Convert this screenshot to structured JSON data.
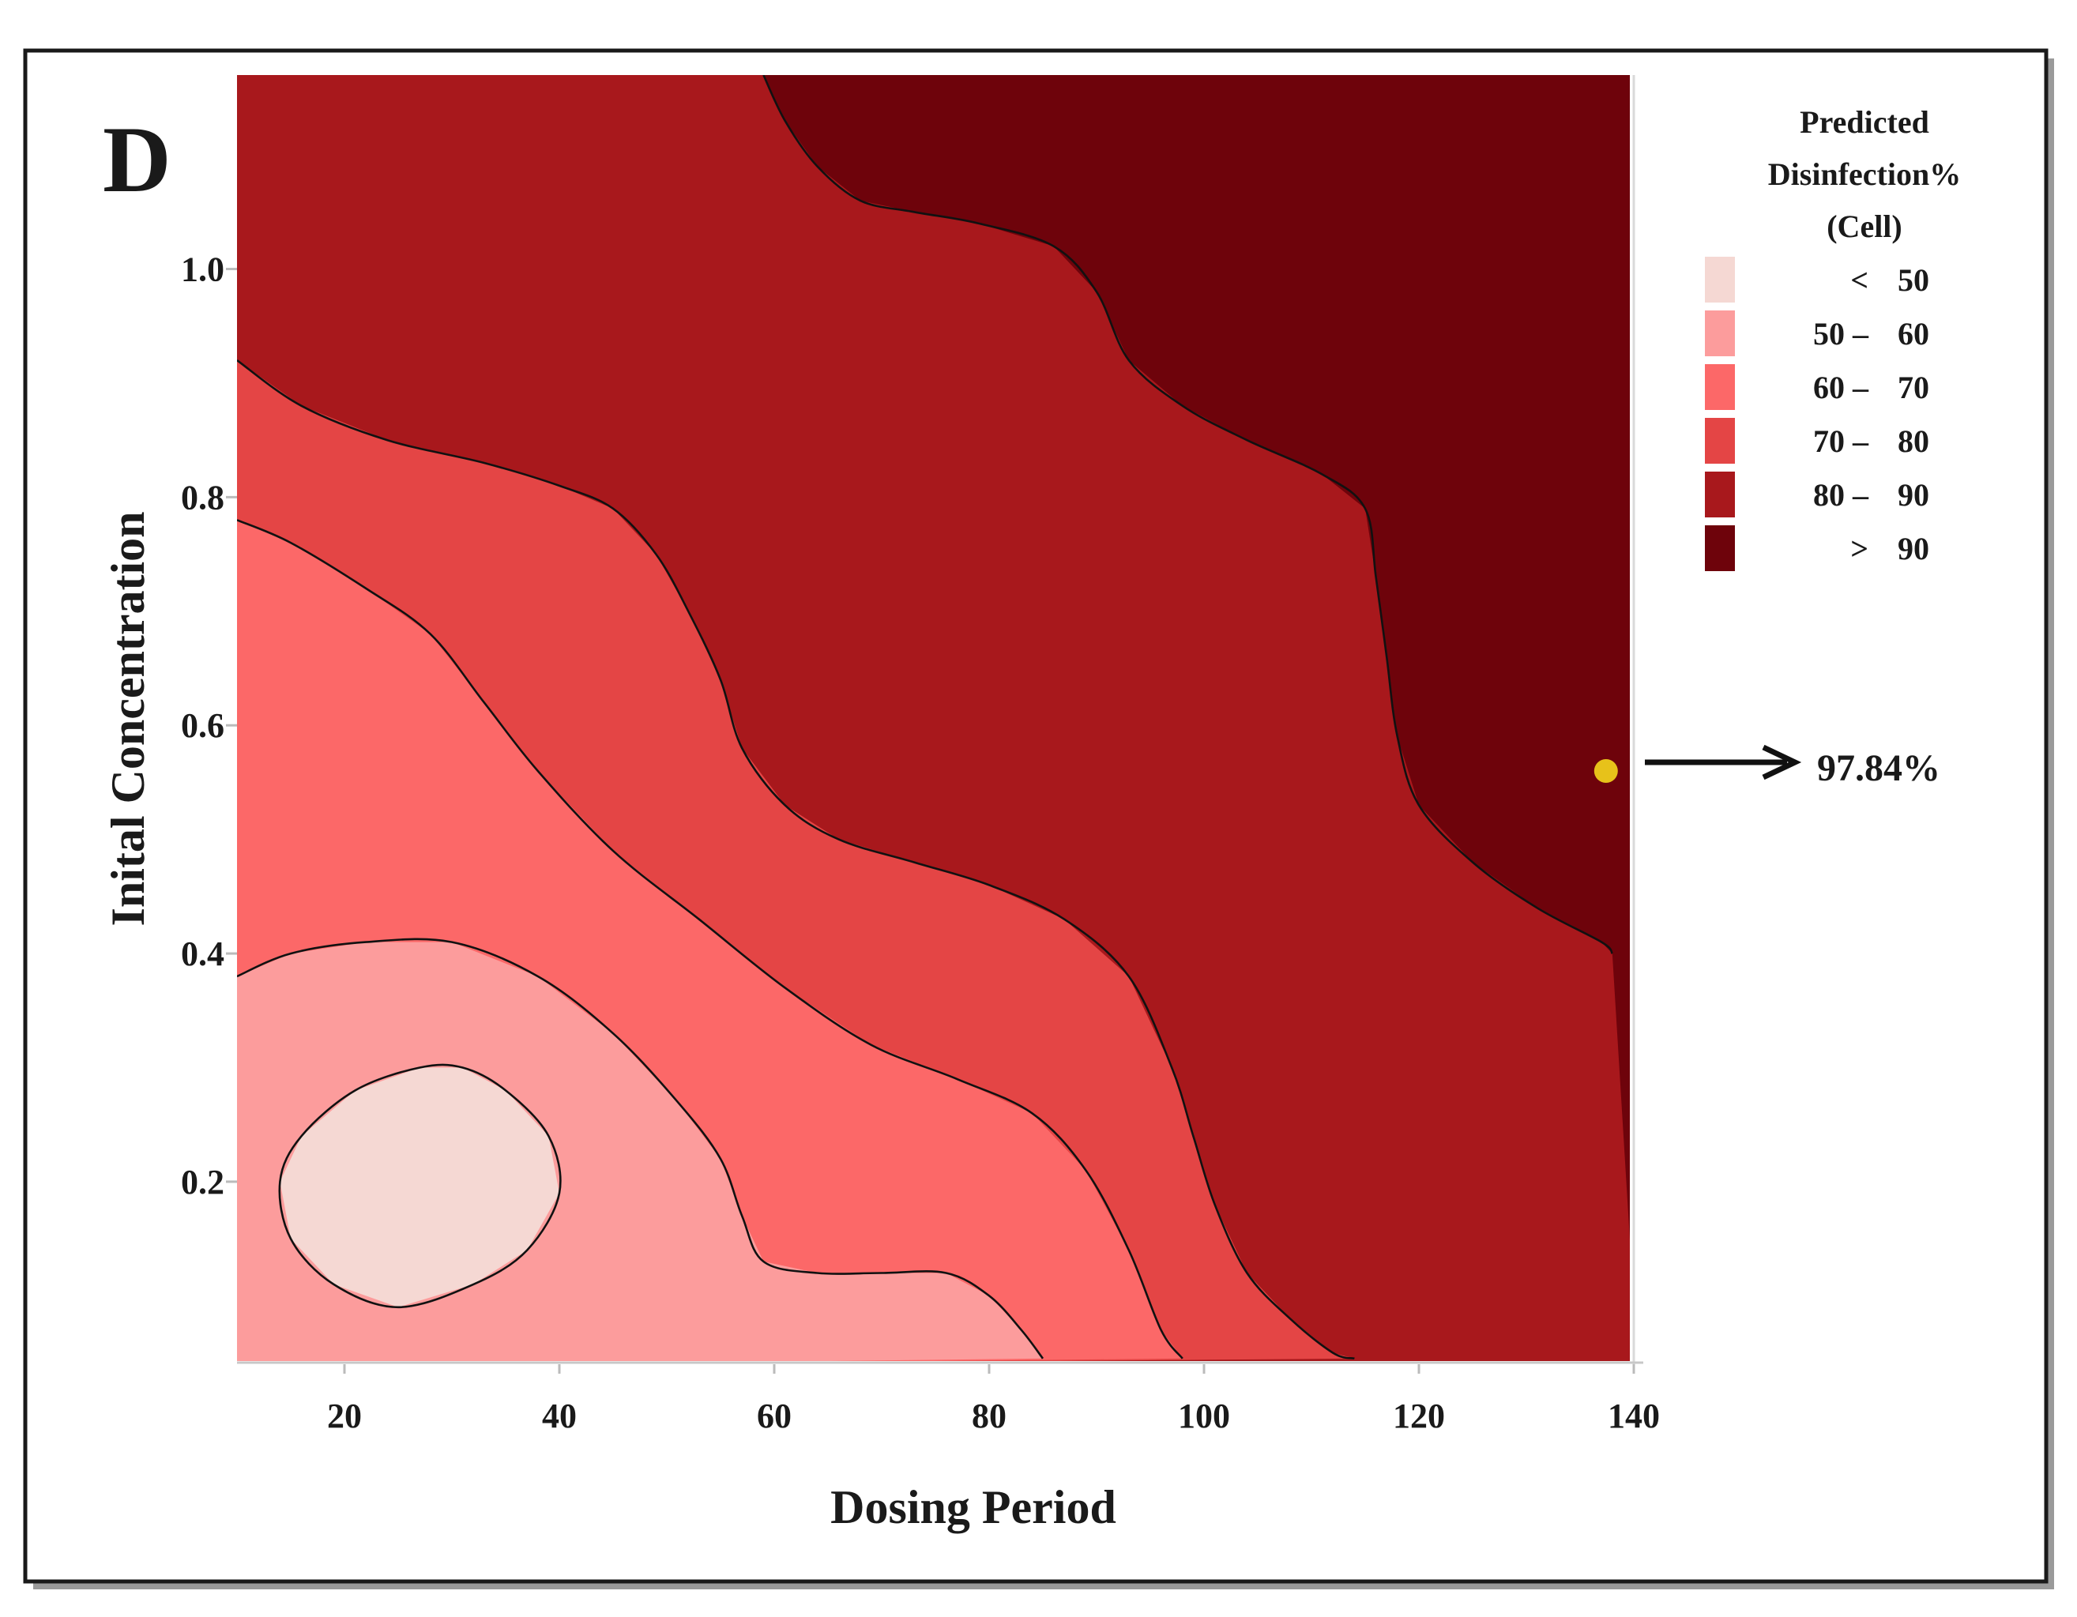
{
  "chart_data": {
    "type": "contour",
    "panel_label": "D",
    "xlabel": "Dosing Period",
    "ylabel": "Inital Concentration",
    "xlim": [
      10,
      140
    ],
    "ylim": [
      0.04,
      1.17
    ],
    "x_ticks": [
      20,
      40,
      60,
      80,
      100,
      120,
      140
    ],
    "x_tick_labels": [
      "20",
      "40",
      "60",
      "80",
      "100",
      "120",
      "140"
    ],
    "y_ticks": [
      0.2,
      0.4,
      0.6,
      0.8,
      1.0
    ],
    "y_tick_labels": [
      "0.2",
      "0.4",
      "0.6",
      "0.8",
      "1.0"
    ],
    "legend": {
      "title": [
        "Predicted",
        "Disinfection%",
        "(Cell)"
      ],
      "placement": "right",
      "items": [
        {
          "range": "< 50",
          "left": "<",
          "right": "50",
          "color": "#f5d8d3"
        },
        {
          "range": "50 – 60",
          "left": "50 –",
          "right": "60",
          "color": "#fc9c9c"
        },
        {
          "range": "60 – 70",
          "left": "60 –",
          "right": "70",
          "color": "#fc6868"
        },
        {
          "range": "70 – 80",
          "left": "70 –",
          "right": "80",
          "color": "#e44545"
        },
        {
          "range": "80 – 90",
          "left": "80 –",
          "right": "90",
          "color": "#a8181c"
        },
        {
          "range": "> 90",
          "left": ">",
          "right": "90",
          "color": "#6e030b"
        }
      ]
    },
    "contours": [
      {
        "level": "<50/50",
        "closed": true,
        "points": [
          [
            14,
            0.2
          ],
          [
            15,
            0.15
          ],
          [
            19,
            0.11
          ],
          [
            25,
            0.09
          ],
          [
            32,
            0.11
          ],
          [
            37,
            0.14
          ],
          [
            40,
            0.19
          ],
          [
            39,
            0.24
          ],
          [
            35,
            0.28
          ],
          [
            31,
            0.3
          ],
          [
            27,
            0.3
          ],
          [
            21,
            0.28
          ],
          [
            16,
            0.24
          ]
        ]
      },
      {
        "level": "50/60",
        "closed": false,
        "points": [
          [
            10,
            0.38
          ],
          [
            15,
            0.4
          ],
          [
            22,
            0.41
          ],
          [
            30,
            0.41
          ],
          [
            38,
            0.38
          ],
          [
            45,
            0.33
          ],
          [
            51,
            0.27
          ],
          [
            55,
            0.22
          ],
          [
            57,
            0.17
          ],
          [
            59,
            0.13
          ],
          [
            64,
            0.12
          ],
          [
            70,
            0.12
          ],
          [
            76,
            0.12
          ],
          [
            80,
            0.1
          ],
          [
            83,
            0.07
          ],
          [
            85,
            0.045
          ]
        ]
      },
      {
        "level": "60/70",
        "closed": false,
        "points": [
          [
            10,
            0.78
          ],
          [
            15,
            0.76
          ],
          [
            22,
            0.72
          ],
          [
            28,
            0.68
          ],
          [
            33,
            0.62
          ],
          [
            38,
            0.56
          ],
          [
            45,
            0.49
          ],
          [
            53,
            0.43
          ],
          [
            61,
            0.37
          ],
          [
            69,
            0.32
          ],
          [
            77,
            0.29
          ],
          [
            84,
            0.26
          ],
          [
            89,
            0.21
          ],
          [
            93,
            0.14
          ],
          [
            96,
            0.07
          ],
          [
            98,
            0.045
          ]
        ]
      },
      {
        "level": "70/80",
        "closed": false,
        "points": [
          [
            10,
            0.92
          ],
          [
            16,
            0.88
          ],
          [
            24,
            0.85
          ],
          [
            33,
            0.83
          ],
          [
            40,
            0.81
          ],
          [
            45,
            0.79
          ],
          [
            49,
            0.75
          ],
          [
            52,
            0.7
          ],
          [
            55,
            0.64
          ],
          [
            57,
            0.58
          ],
          [
            61,
            0.53
          ],
          [
            66,
            0.5
          ],
          [
            73,
            0.48
          ],
          [
            80,
            0.46
          ],
          [
            87,
            0.43
          ],
          [
            93,
            0.38
          ],
          [
            97,
            0.3
          ],
          [
            99,
            0.24
          ],
          [
            101,
            0.18
          ],
          [
            104,
            0.12
          ],
          [
            108,
            0.08
          ],
          [
            112,
            0.05
          ],
          [
            114,
            0.045
          ]
        ]
      },
      {
        "level": "80/90",
        "closed": false,
        "points": [
          [
            59,
            1.17
          ],
          [
            61,
            1.13
          ],
          [
            64,
            1.09
          ],
          [
            68,
            1.06
          ],
          [
            73,
            1.05
          ],
          [
            79,
            1.04
          ],
          [
            86,
            1.02
          ],
          [
            90,
            0.98
          ],
          [
            93,
            0.92
          ],
          [
            98,
            0.88
          ],
          [
            104,
            0.85
          ],
          [
            111,
            0.82
          ],
          [
            115,
            0.79
          ],
          [
            116,
            0.73
          ],
          [
            117,
            0.66
          ],
          [
            118,
            0.59
          ],
          [
            120,
            0.53
          ],
          [
            125,
            0.48
          ],
          [
            131,
            0.44
          ],
          [
            137,
            0.41
          ],
          [
            138,
            0.4
          ]
        ]
      }
    ],
    "annotations": [
      {
        "text": "97.84%",
        "x": 138,
        "y": 0.56,
        "marker_color": "#e7c21a"
      }
    ]
  }
}
